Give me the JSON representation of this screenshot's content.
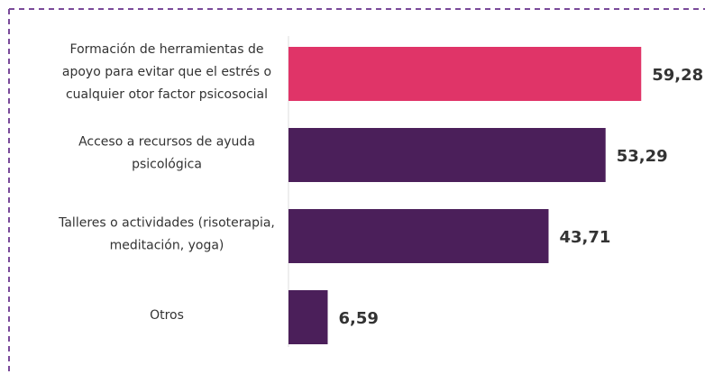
{
  "chart_data": {
    "type": "hbar",
    "categories": [
      [
        "Formación de herramientas de",
        "apoyo para evitar que el estrés o",
        "cualquier otor factor psicosocial"
      ],
      [
        "Acceso a recursos de ayuda",
        "psicológica"
      ],
      [
        "Talleres o actividades (risoterapia,",
        "meditación, yoga)"
      ],
      [
        "Otros"
      ]
    ],
    "values": [
      59.28,
      53.29,
      43.71,
      6.59
    ],
    "value_labels": [
      "59,28",
      "53,29",
      "43,71",
      "6,59"
    ],
    "colors": [
      "#e03468",
      "#4b1f5a",
      "#4b1f5a",
      "#4b1f5a"
    ],
    "xlim": [
      0,
      70
    ]
  }
}
